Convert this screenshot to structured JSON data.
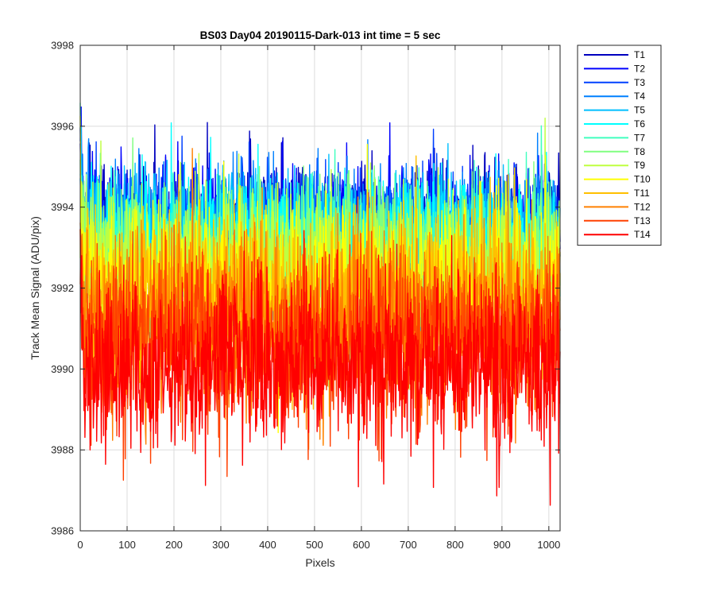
{
  "chart_data": {
    "type": "line",
    "title": "BS03 Day04 20190115-Dark-013 int time = 5 sec",
    "xlabel": "Pixels",
    "ylabel": "Track Mean Signal (ADU/pix)",
    "xlim": [
      0,
      1024
    ],
    "ylim": [
      3986,
      3998
    ],
    "xticks": [
      "0",
      "100",
      "200",
      "300",
      "400",
      "500",
      "600",
      "700",
      "800",
      "900",
      "1000"
    ],
    "yticks": [
      "3986",
      "3988",
      "3990",
      "3992",
      "3994",
      "3996",
      "3998"
    ],
    "grid": true,
    "legend_position": "outside-right-top",
    "n_points": 1024,
    "series": [
      {
        "name": "T1",
        "color": "#0000bf",
        "mean": 3993.6,
        "noise": 0.75
      },
      {
        "name": "T2",
        "color": "#0000ff",
        "mean": 3993.5,
        "noise": 0.75
      },
      {
        "name": "T3",
        "color": "#0040ff",
        "mean": 3993.4,
        "noise": 0.75
      },
      {
        "name": "T4",
        "color": "#0080ff",
        "mean": 3993.3,
        "noise": 0.8
      },
      {
        "name": "T5",
        "color": "#00bfff",
        "mean": 3993.2,
        "noise": 0.8
      },
      {
        "name": "T6",
        "color": "#00ffff",
        "mean": 3993.1,
        "noise": 0.8
      },
      {
        "name": "T7",
        "color": "#40ffbf",
        "mean": 3992.9,
        "noise": 0.85
      },
      {
        "name": "T8",
        "color": "#80ff80",
        "mean": 3992.7,
        "noise": 0.9
      },
      {
        "name": "T9",
        "color": "#bfff40",
        "mean": 3992.5,
        "noise": 0.95
      },
      {
        "name": "T10",
        "color": "#ffff00",
        "mean": 3992.1,
        "noise": 1.0
      },
      {
        "name": "T11",
        "color": "#ffbf00",
        "mean": 3991.7,
        "noise": 1.05
      },
      {
        "name": "T12",
        "color": "#ff8000",
        "mean": 3991.2,
        "noise": 1.1
      },
      {
        "name": "T13",
        "color": "#ff4000",
        "mean": 3990.7,
        "noise": 1.1
      },
      {
        "name": "T14",
        "color": "#ff0000",
        "mean": 3990.1,
        "noise": 1.05
      }
    ]
  }
}
